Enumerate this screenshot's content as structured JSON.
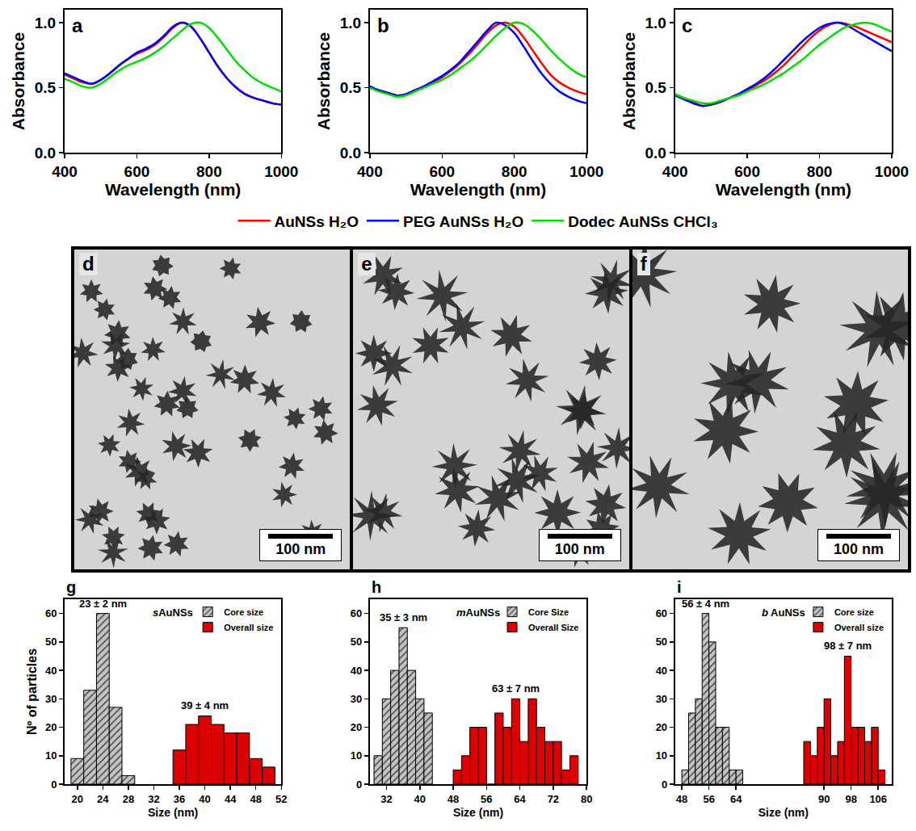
{
  "chart_data": [
    {
      "type": "line",
      "panel": "a",
      "xlabel": "Wavelength (nm)",
      "ylabel": "Absorbance",
      "xlim": [
        400,
        1000
      ],
      "xticks": [
        400,
        600,
        800,
        1000
      ],
      "ylim": [
        0,
        1.1
      ],
      "yticks": [
        {
          "value": 0,
          "label": "0.0"
        },
        {
          "value": 0.5,
          "label": "0.5"
        },
        {
          "value": 1,
          "label": "1.0"
        }
      ],
      "grid": false,
      "legend": "bottom",
      "x": [
        400,
        425,
        450,
        475,
        500,
        525,
        550,
        575,
        600,
        625,
        650,
        675,
        700,
        725,
        750,
        775,
        800,
        825,
        850,
        875,
        900,
        925,
        950,
        975,
        1000
      ],
      "series": [
        {
          "name": "AuNSs H₂O",
          "color": "#ff0000",
          "line_style": "solid",
          "values": [
            0.6,
            0.57,
            0.54,
            0.53,
            0.56,
            0.61,
            0.67,
            0.72,
            0.76,
            0.79,
            0.83,
            0.89,
            0.96,
            1.0,
            0.97,
            0.88,
            0.77,
            0.66,
            0.57,
            0.5,
            0.45,
            0.42,
            0.4,
            0.38,
            0.37
          ]
        },
        {
          "name": "PEG AuNSs H₂O",
          "color": "#0000ff",
          "line_style": "solid",
          "values": [
            0.61,
            0.58,
            0.55,
            0.53,
            0.56,
            0.61,
            0.67,
            0.72,
            0.77,
            0.8,
            0.84,
            0.9,
            0.97,
            1.0,
            0.97,
            0.88,
            0.77,
            0.66,
            0.57,
            0.5,
            0.45,
            0.42,
            0.4,
            0.38,
            0.37
          ]
        },
        {
          "name": "Dodec AuNSs CHCl₃",
          "color": "#00e000",
          "line_style": "solid",
          "values": [
            0.57,
            0.54,
            0.51,
            0.5,
            0.53,
            0.58,
            0.63,
            0.67,
            0.7,
            0.73,
            0.77,
            0.82,
            0.88,
            0.94,
            0.99,
            1.0,
            0.96,
            0.88,
            0.79,
            0.7,
            0.63,
            0.57,
            0.53,
            0.5,
            0.47
          ]
        }
      ]
    },
    {
      "type": "line",
      "panel": "b",
      "xlabel": "Wavelength (nm)",
      "ylabel": "Absorbance",
      "xlim": [
        400,
        1000
      ],
      "xticks": [
        400,
        600,
        800,
        1000
      ],
      "ylim": [
        0,
        1.1
      ],
      "yticks": [
        {
          "value": 0,
          "label": "0.0"
        },
        {
          "value": 0.5,
          "label": "0.5"
        },
        {
          "value": 1,
          "label": "1.0"
        }
      ],
      "grid": false,
      "legend": "bottom",
      "x": [
        400,
        425,
        450,
        475,
        500,
        525,
        550,
        575,
        600,
        625,
        650,
        675,
        700,
        725,
        750,
        775,
        800,
        825,
        850,
        875,
        900,
        925,
        950,
        975,
        1000
      ],
      "series": [
        {
          "name": "AuNSs H₂O",
          "color": "#ff0000",
          "line_style": "solid",
          "values": [
            0.5,
            0.48,
            0.46,
            0.44,
            0.45,
            0.48,
            0.51,
            0.54,
            0.58,
            0.63,
            0.69,
            0.76,
            0.84,
            0.92,
            0.98,
            1.0,
            0.97,
            0.89,
            0.79,
            0.69,
            0.6,
            0.54,
            0.5,
            0.47,
            0.45
          ]
        },
        {
          "name": "PEG AuNSs H₂O",
          "color": "#0000ff",
          "line_style": "solid",
          "values": [
            0.51,
            0.48,
            0.46,
            0.44,
            0.45,
            0.48,
            0.51,
            0.55,
            0.59,
            0.64,
            0.7,
            0.78,
            0.86,
            0.94,
            1.0,
            0.98,
            0.92,
            0.82,
            0.71,
            0.61,
            0.53,
            0.47,
            0.43,
            0.4,
            0.38
          ]
        },
        {
          "name": "Dodec AuNSs CHCl₃",
          "color": "#00e000",
          "line_style": "solid",
          "values": [
            0.5,
            0.47,
            0.45,
            0.43,
            0.44,
            0.47,
            0.5,
            0.53,
            0.56,
            0.6,
            0.65,
            0.7,
            0.76,
            0.83,
            0.9,
            0.96,
            1.0,
            0.99,
            0.94,
            0.87,
            0.79,
            0.72,
            0.66,
            0.61,
            0.58
          ]
        }
      ]
    },
    {
      "type": "line",
      "panel": "c",
      "xlabel": "Wavelength (nm)",
      "ylabel": "Absorbance",
      "xlim": [
        400,
        1000
      ],
      "xticks": [
        400,
        600,
        800,
        1000
      ],
      "ylim": [
        0,
        1.1
      ],
      "yticks": [
        {
          "value": 0,
          "label": "0.0"
        },
        {
          "value": 0.5,
          "label": "0.5"
        },
        {
          "value": 1,
          "label": "1.0"
        }
      ],
      "grid": false,
      "legend": "bottom",
      "x": [
        400,
        425,
        450,
        475,
        500,
        525,
        550,
        575,
        600,
        625,
        650,
        675,
        700,
        725,
        750,
        775,
        800,
        825,
        850,
        875,
        900,
        925,
        950,
        975,
        1000
      ],
      "series": [
        {
          "name": "AuNSs H₂O",
          "color": "#ff0000",
          "line_style": "solid",
          "values": [
            0.45,
            0.42,
            0.39,
            0.36,
            0.37,
            0.39,
            0.42,
            0.45,
            0.48,
            0.52,
            0.56,
            0.61,
            0.67,
            0.74,
            0.81,
            0.88,
            0.94,
            0.98,
            1.0,
            0.99,
            0.97,
            0.94,
            0.91,
            0.88,
            0.85
          ]
        },
        {
          "name": "PEG AuNSs H₂O",
          "color": "#0000ff",
          "line_style": "solid",
          "values": [
            0.44,
            0.41,
            0.38,
            0.36,
            0.37,
            0.39,
            0.42,
            0.45,
            0.49,
            0.53,
            0.58,
            0.64,
            0.71,
            0.78,
            0.85,
            0.91,
            0.96,
            0.99,
            1.0,
            0.98,
            0.94,
            0.9,
            0.86,
            0.82,
            0.78
          ]
        },
        {
          "name": "Dodec AuNSs CHCl₃",
          "color": "#00e000",
          "line_style": "solid",
          "values": [
            0.45,
            0.42,
            0.4,
            0.38,
            0.38,
            0.4,
            0.42,
            0.44,
            0.47,
            0.5,
            0.53,
            0.57,
            0.61,
            0.66,
            0.71,
            0.77,
            0.83,
            0.88,
            0.93,
            0.97,
            0.99,
            1.0,
            0.99,
            0.96,
            0.93
          ]
        }
      ]
    },
    {
      "type": "histogram",
      "panel": "g",
      "title": "sAuNSs",
      "xlabel": "Size (nm)",
      "ylabel": "Nº of particles",
      "xlim": [
        18,
        52
      ],
      "xticks": [
        20,
        24,
        28,
        32,
        36,
        40,
        44,
        48,
        52
      ],
      "ylim": [
        0,
        65
      ],
      "yticks": [
        0,
        10,
        20,
        30,
        40,
        50,
        60
      ],
      "grid": false,
      "legend": "top right",
      "series": [
        {
          "name": "Core size",
          "color": "#c4c4c4",
          "marker": "hatch",
          "annotation": "23 ± 2 nm",
          "bins": [
            19,
            21,
            23,
            25,
            27,
            29
          ],
          "values": [
            9,
            33,
            60,
            27,
            3
          ]
        },
        {
          "name": "Overall size",
          "color": "#dd0000",
          "marker": "solid",
          "annotation": "39 ± 4 nm",
          "bins": [
            35,
            37,
            39,
            41,
            43,
            45,
            47,
            49,
            51
          ],
          "values": [
            12,
            21,
            24,
            21,
            18,
            18,
            9,
            6
          ]
        }
      ]
    },
    {
      "type": "histogram",
      "panel": "h",
      "title": "mAuNSs",
      "xlabel": "Size (nm)",
      "xlim": [
        28,
        80
      ],
      "xticks": [
        32,
        40,
        48,
        56,
        64,
        72,
        80
      ],
      "ylim": [
        0,
        65
      ],
      "yticks": [
        0,
        10,
        20,
        30,
        40,
        50,
        60
      ],
      "grid": false,
      "legend": "top right",
      "series": [
        {
          "name": "Core Size",
          "color": "#c4c4c4",
          "marker": "hatch",
          "annotation": "35 ± 3 nm",
          "bins": [
            29,
            31,
            33,
            35,
            37,
            39,
            41,
            43
          ],
          "values": [
            10,
            30,
            40,
            55,
            40,
            30,
            25
          ]
        },
        {
          "name": "Overall Size",
          "color": "#dd0000",
          "marker": "solid",
          "annotation": "63 ± 7 nm",
          "bins": [
            48,
            50,
            52,
            54,
            56,
            58,
            60,
            62,
            64,
            66,
            68,
            70,
            72,
            74,
            76,
            78
          ],
          "values": [
            5,
            10,
            20,
            20,
            0,
            25,
            20,
            30,
            15,
            30,
            20,
            15,
            15,
            5,
            10
          ]
        }
      ]
    },
    {
      "type": "histogram",
      "panel": "i",
      "title": "b AuNSs",
      "xlabel": "Size (nm)",
      "xlim": [
        46,
        110
      ],
      "xticks": [
        48,
        56,
        64,
        90,
        98,
        106
      ],
      "ylim": [
        0,
        65
      ],
      "yticks": [
        0,
        10,
        20,
        30,
        40,
        50,
        60
      ],
      "grid": false,
      "legend": "top right",
      "series": [
        {
          "name": "Core size",
          "color": "#c4c4c4",
          "marker": "hatch",
          "annotation": "56 ± 4 nm",
          "bins": [
            48,
            50,
            52,
            54,
            56,
            58,
            60,
            62,
            64,
            66
          ],
          "values": [
            5,
            25,
            30,
            60,
            50,
            20,
            20,
            5,
            5
          ]
        },
        {
          "name": "Overall size",
          "color": "#dd0000",
          "marker": "solid",
          "annotation": "98 ± 7 nm",
          "bins": [
            84,
            86,
            88,
            90,
            92,
            94,
            96,
            98,
            100,
            102,
            104,
            106,
            108
          ],
          "values": [
            15,
            10,
            20,
            30,
            10,
            15,
            45,
            20,
            20,
            15,
            20,
            5
          ]
        }
      ]
    }
  ],
  "images": [
    {
      "panel": "d",
      "scale_bar": "100 nm"
    },
    {
      "panel": "e",
      "scale_bar": "100 nm"
    },
    {
      "panel": "f",
      "scale_bar": "100 nm"
    }
  ]
}
